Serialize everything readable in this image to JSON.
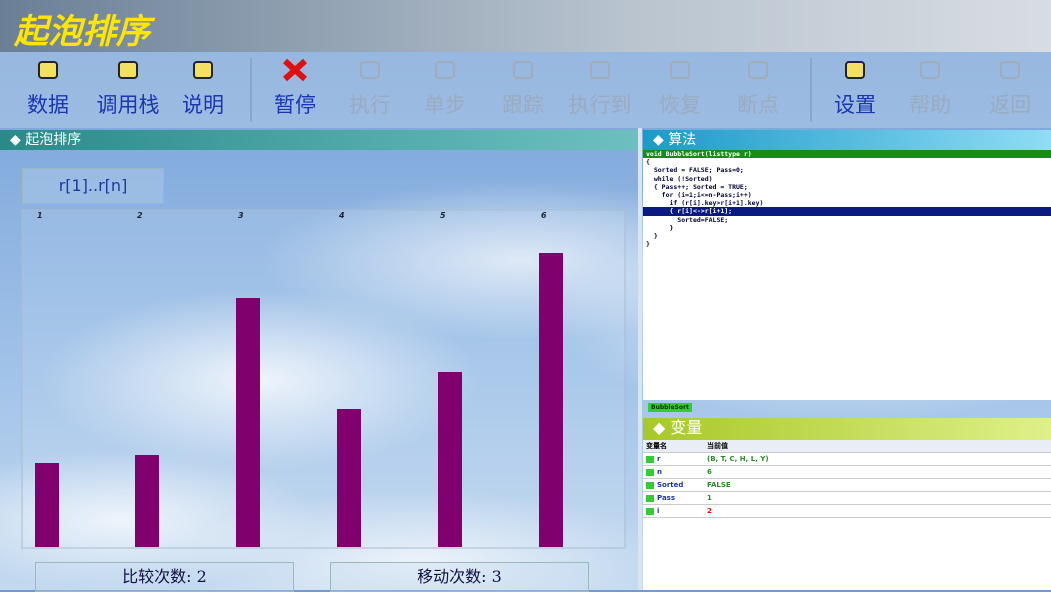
{
  "header": {
    "title": "起泡排序"
  },
  "toolbar": [
    {
      "label": "数据",
      "enabled": true
    },
    {
      "label": "调用栈",
      "enabled": true
    },
    {
      "label": "说明",
      "enabled": true
    },
    {
      "label": "暂停",
      "enabled": true
    },
    {
      "label": "执行",
      "enabled": false
    },
    {
      "label": "单步",
      "enabled": false
    },
    {
      "label": "跟踪",
      "enabled": false
    },
    {
      "label": "执行到",
      "enabled": false
    },
    {
      "label": "恢复",
      "enabled": false
    },
    {
      "label": "断点",
      "enabled": false
    },
    {
      "label": "设置",
      "enabled": true
    },
    {
      "label": "帮助",
      "enabled": false
    },
    {
      "label": "返回",
      "enabled": false
    }
  ],
  "sort_panel": {
    "title": "◆ 起泡排序",
    "range_label": "r[1]..r[n]",
    "chart_data": {
      "type": "bar",
      "categories": [
        "1",
        "2",
        "3",
        "4",
        "5",
        "6"
      ],
      "values": [
        84,
        92,
        249,
        138,
        175,
        294
      ],
      "color": "#80006e"
    },
    "compare_count": {
      "label": "比较次数:",
      "value": 2
    },
    "move_count": {
      "label": "移动次数:",
      "value": 3
    }
  },
  "algorithm": {
    "title": "◆ 算法",
    "code": [
      "void BubbleSort(listtype r)",
      "{",
      "  Sorted = FALSE; Pass=0;",
      "  while (!Sorted)",
      "  { Pass++; Sorted = TRUE;",
      "    for (i=1;i<=n-Pass;i++)",
      "      if (r[i].key>r[i+1].key)",
      "      { r[i]<->r[i+1];",
      "        Sorted=FALSE;",
      "      }",
      "  }",
      "}"
    ],
    "tab": "BubbleSort"
  },
  "variables": {
    "title": "◆ 变量",
    "columns": [
      "变量名",
      "当前值"
    ],
    "rows": [
      [
        "r",
        "(B, T, C, H, L, Y)"
      ],
      [
        "n",
        "6"
      ],
      [
        "Sorted",
        "FALSE"
      ],
      [
        "Pass",
        "1"
      ],
      [
        "i",
        "2"
      ]
    ]
  }
}
